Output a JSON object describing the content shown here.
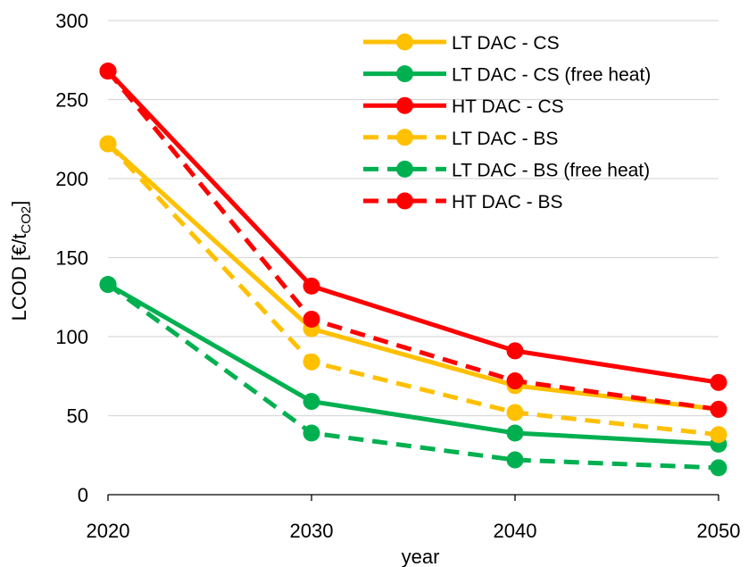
{
  "chart_data": {
    "type": "line",
    "x": [
      2020,
      2030,
      2040,
      2050
    ],
    "xlabel": "year",
    "ylabel_main": "LCOD [€/t",
    "ylabel_sub": "CO2",
    "ylabel_end": "]",
    "ylim": [
      0,
      300
    ],
    "yticks": [
      0,
      50,
      100,
      150,
      200,
      250,
      300
    ],
    "xticks": [
      2020,
      2030,
      2040,
      2050
    ],
    "grid": "horizontal",
    "legend_position": "top-right",
    "series": [
      {
        "name": "LT DAC - CS",
        "values": [
          222,
          105,
          69,
          54
        ],
        "color": "#ffc000",
        "dashed": false
      },
      {
        "name": "LT DAC - CS (free heat)",
        "values": [
          133,
          59,
          39,
          32
        ],
        "color": "#00b050",
        "dashed": false
      },
      {
        "name": "HT DAC - CS",
        "values": [
          268,
          132,
          91,
          71
        ],
        "color": "#ff0000",
        "dashed": false
      },
      {
        "name": "LT DAC - BS",
        "values": [
          222,
          84,
          52,
          38
        ],
        "color": "#ffc000",
        "dashed": true
      },
      {
        "name": "LT DAC - BS (free heat)",
        "values": [
          133,
          39,
          22,
          17
        ],
        "color": "#00b050",
        "dashed": true
      },
      {
        "name": "HT DAC - BS",
        "values": [
          268,
          111,
          72,
          54
        ],
        "color": "#ff0000",
        "dashed": true
      }
    ]
  }
}
